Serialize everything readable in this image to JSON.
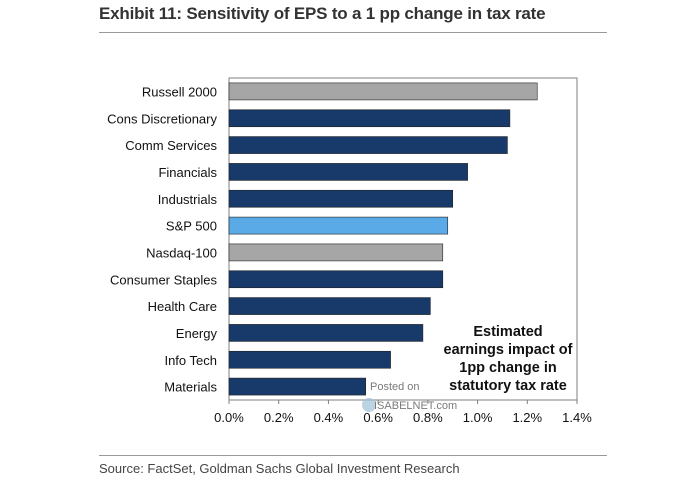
{
  "title": "Exhibit 11: Sensitivity of EPS to a 1 pp change in tax rate",
  "source": "Source: FactSet, Goldman Sachs Global Investment Research",
  "annotation": "Estimated\nearnings impact of\n1pp change in\nstatutory tax rate",
  "watermark": {
    "line1": "Posted on",
    "line2": "ISABELNET.com",
    "icon": "globe-icon"
  },
  "colors": {
    "dark": "#173a6b",
    "gray": "#a6a6a6",
    "light": "#5aaae8"
  },
  "chart_data": {
    "type": "bar",
    "orientation": "horizontal",
    "categories": [
      "Russell 2000",
      "Cons Discretionary",
      "Comm Services",
      "Financials",
      "Industrials",
      "S&P 500",
      "Nasdaq-100",
      "Consumer Staples",
      "Health Care",
      "Energy",
      "Info Tech",
      "Materials"
    ],
    "values": [
      1.24,
      1.13,
      1.12,
      0.96,
      0.9,
      0.88,
      0.86,
      0.86,
      0.81,
      0.78,
      0.65,
      0.55
    ],
    "bar_colors": [
      "gray",
      "dark",
      "dark",
      "dark",
      "dark",
      "light",
      "gray",
      "dark",
      "dark",
      "dark",
      "dark",
      "dark"
    ],
    "xlim": [
      0,
      1.4
    ],
    "xticks": [
      0,
      0.2,
      0.4,
      0.6,
      0.8,
      1.0,
      1.2,
      1.4
    ],
    "xtick_labels": [
      "0.0%",
      "0.2%",
      "0.4%",
      "0.6%",
      "0.8%",
      "1.0%",
      "1.2%",
      "1.4%"
    ],
    "xlabel": "",
    "ylabel": "",
    "grid": false
  }
}
